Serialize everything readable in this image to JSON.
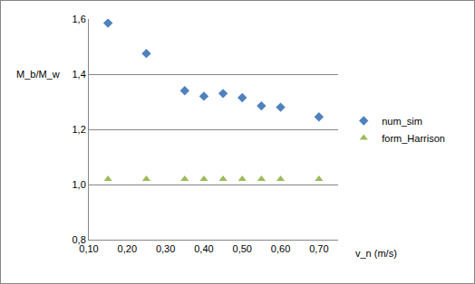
{
  "chart_data": {
    "type": "scatter",
    "xlabel": "v_n (m/s)",
    "ylabel": "M_b/M_w",
    "x": [
      0.15,
      0.25,
      0.35,
      0.4,
      0.45,
      0.5,
      0.55,
      0.6,
      0.7
    ],
    "series": [
      {
        "name": "num_sim",
        "color": "#4f81bd",
        "marker": "diamond",
        "values": [
          1.585,
          1.475,
          1.34,
          1.32,
          1.33,
          1.315,
          1.285,
          1.28,
          1.245
        ]
      },
      {
        "name": "form_Harrison",
        "color": "#9bbb59",
        "marker": "triangle-up",
        "values": [
          1.02,
          1.02,
          1.02,
          1.02,
          1.02,
          1.02,
          1.02,
          1.02,
          1.02
        ]
      }
    ],
    "xlim": [
      0.1,
      0.75
    ],
    "xticks": [
      {
        "value": 0.1,
        "label": "0,10"
      },
      {
        "value": 0.2,
        "label": "0,20"
      },
      {
        "value": 0.3,
        "label": "0,30"
      },
      {
        "value": 0.4,
        "label": "0,40"
      },
      {
        "value": 0.5,
        "label": "0,50"
      },
      {
        "value": 0.6,
        "label": "0,60"
      },
      {
        "value": 0.7,
        "label": "0,70"
      }
    ],
    "ylim": [
      0.8,
      1.6
    ],
    "yticks": [
      {
        "value": 0.8,
        "label": "0,8"
      },
      {
        "value": 1.0,
        "label": "1,0"
      },
      {
        "value": 1.2,
        "label": "1,2"
      },
      {
        "value": 1.4,
        "label": "1,4"
      },
      {
        "value": 1.6,
        "label": "1,6"
      }
    ],
    "grid": true,
    "legend": "right"
  }
}
